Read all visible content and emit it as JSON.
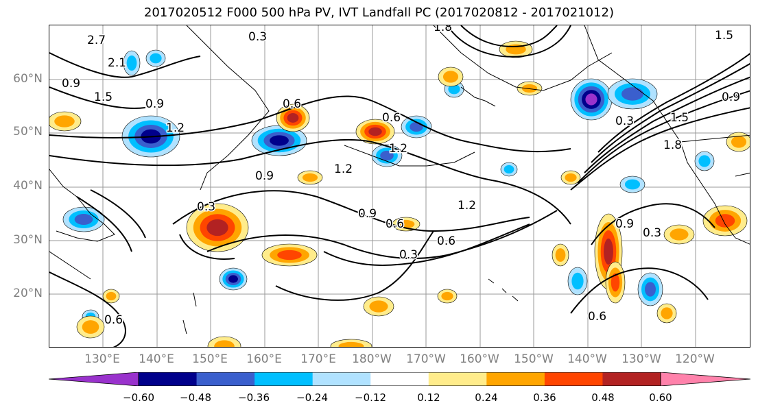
{
  "title": "2017020512 F000 500 hPa PV, IVT Landfall PC (2017020812 - 2017021012)",
  "lat_labels": [
    "60°N",
    "50°N",
    "40°N",
    "30°N",
    "20°N"
  ],
  "lon_labels": [
    "130°E",
    "140°E",
    "150°E",
    "160°E",
    "170°E",
    "180°W",
    "170°W",
    "160°W",
    "150°W",
    "140°W",
    "130°W",
    "120°W"
  ],
  "contour_labels": [
    "2.7",
    "2.1",
    "0.9",
    "1.5",
    "0.9",
    "0.6",
    "1.2",
    "0.3",
    "0.6",
    "1.8",
    "0.9",
    "1.2",
    "0.3",
    "0.9",
    "1.2",
    "0.6",
    "0.3",
    "0.6",
    "1.2",
    "0.9",
    "0.3",
    "0.6",
    "0.6",
    "1.5",
    "1.5",
    "1.8",
    "0.3",
    "0.9"
  ],
  "colorbar": {
    "colors": [
      "#9932cc",
      "#00008b",
      "#3a5fcd",
      "#00bfff",
      "#b0e2ff",
      "#ffffff",
      "#ffec8b",
      "#ffa500",
      "#ff4500",
      "#b22222",
      "#ff82ab"
    ],
    "tick_labels": [
      "−0.60",
      "−0.48",
      "−0.36",
      "−0.24",
      "−0.12",
      "0.12",
      "0.24",
      "0.36",
      "0.48",
      "0.60"
    ]
  },
  "palette": {
    "gridline": "#999999",
    "contour": "#000000",
    "coast": "#000000"
  }
}
